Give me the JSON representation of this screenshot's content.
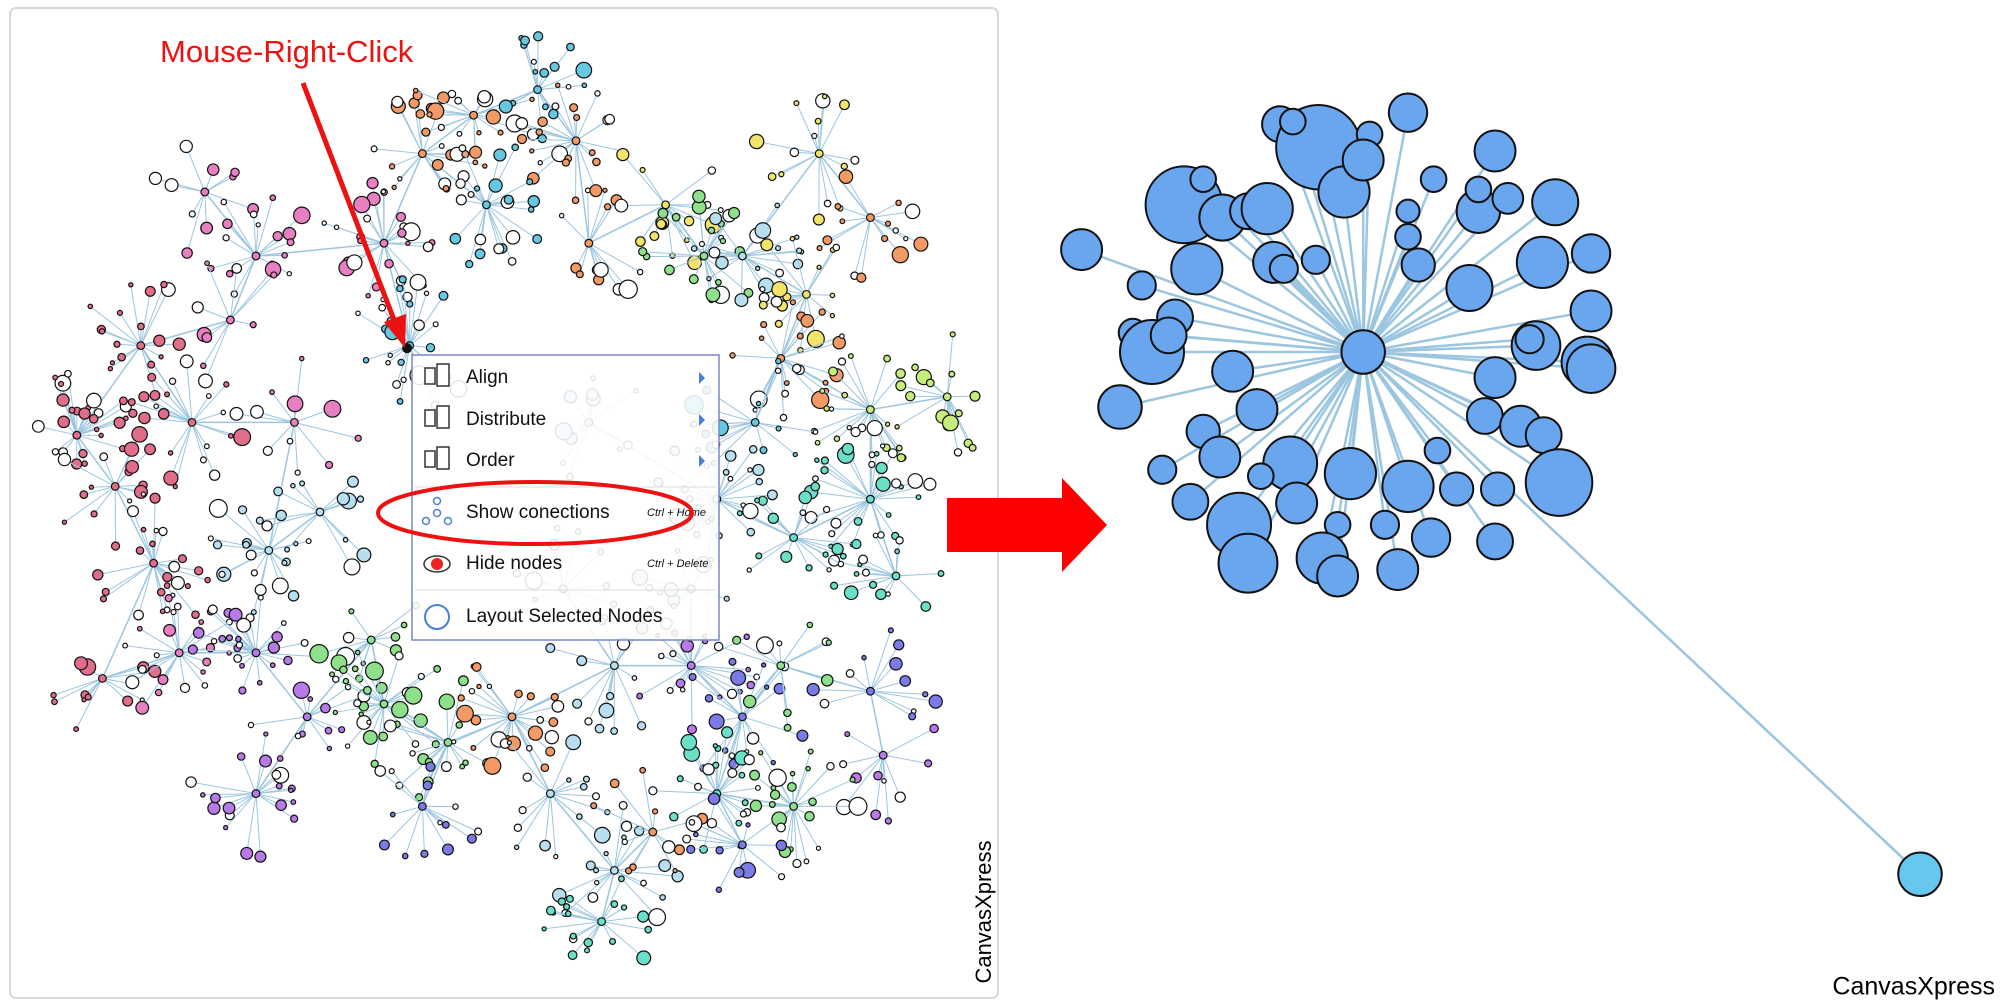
{
  "annotation": "Mouse-Right-Click",
  "menu": {
    "items": [
      {
        "label": "Align"
      },
      {
        "label": "Distribute"
      },
      {
        "label": "Order"
      },
      {
        "label": "Show conections",
        "shortcut": "Ctrl + Home"
      },
      {
        "label": "Hide nodes",
        "shortcut": "Ctrl + Delete"
      },
      {
        "label": "Layout Selected Nodes"
      }
    ]
  },
  "watermarks": [
    "CanvasXpress",
    "CanvasXpress"
  ]
}
